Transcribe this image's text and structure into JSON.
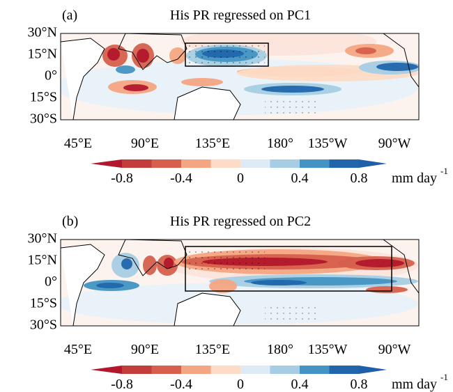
{
  "panels": [
    {
      "label": "(a)",
      "title": "His PR regressed on PC1",
      "lat_labels": [
        "30°N",
        "15°N",
        "0°",
        "15°S",
        "30°S"
      ],
      "lon_labels": [
        "45°E",
        "90°E",
        "135°E",
        "180°",
        "135°W",
        "90°W"
      ],
      "colorbar": {
        "ticks": [
          "-0.8",
          "-0.4",
          "0",
          "0.4",
          "0.8"
        ],
        "unit": "mm day",
        "unit_exponent": "-1"
      }
    },
    {
      "label": "(b)",
      "title": "His PR regressed on PC2",
      "lat_labels": [
        "30°N",
        "15°N",
        "0°",
        "15°S",
        "30°S"
      ],
      "lon_labels": [
        "45°E",
        "90°E",
        "135°E",
        "180°",
        "135°W",
        "90°W"
      ],
      "colorbar": {
        "ticks": [
          "-0.8",
          "-0.4",
          "0",
          "0.4",
          "0.8"
        ],
        "unit": "mm day",
        "unit_exponent": "-1"
      }
    }
  ]
}
